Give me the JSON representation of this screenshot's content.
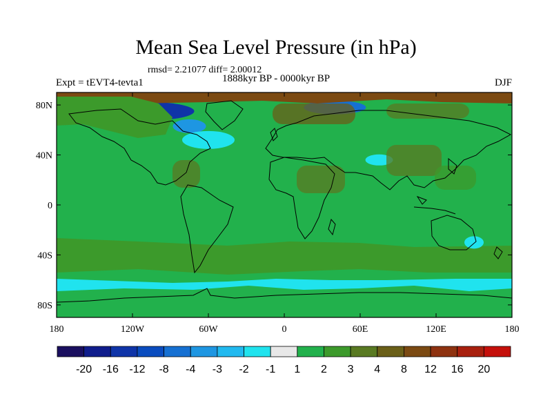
{
  "title": "Mean Sea Level Pressure (in hPa)",
  "stats": "rmsd= 2.21077 diff= 2.00012",
  "period": "1888kyr BP - 0000kyr BP",
  "experiment": "Expt = tEVT4-tevta1",
  "season": "DJF",
  "map": {
    "projection": "cylindrical-equidistant",
    "lon_range": [
      -180,
      180
    ],
    "lat_range": [
      -90,
      90
    ],
    "background_fill": "2",
    "lat_ticks": [
      "80N",
      "40N",
      "0",
      "40S",
      "80S"
    ],
    "lon_ticks": [
      "180",
      "120W",
      "60W",
      "0",
      "60E",
      "120E",
      "180"
    ],
    "regions": [
      {
        "name": "arctic-canada-low",
        "level": "-12",
        "lon": -105,
        "lat": 75
      },
      {
        "name": "hudson-low",
        "level": "-3",
        "lon": -75,
        "lat": 63
      },
      {
        "name": "labrador-neutral",
        "level": "-1",
        "lon": -60,
        "lat": 52
      },
      {
        "name": "siberia-low",
        "level": "-4",
        "lon": 40,
        "lat": 78
      },
      {
        "name": "arctic-ocean-high",
        "level": "12",
        "lon": -20,
        "lat": 85
      },
      {
        "name": "north-pacific-band",
        "level": "3",
        "lon": -150,
        "lat": 65
      },
      {
        "name": "southern-ocean-band",
        "level": "3",
        "lon": 0,
        "lat": -42
      },
      {
        "name": "antarctic-neutral",
        "level": "-1",
        "lon": 0,
        "lat": -68
      },
      {
        "name": "indian-ocean-neutral",
        "level": "-1",
        "lon": 75,
        "lat": 36
      },
      {
        "name": "australia-neutral",
        "level": "-1",
        "lon": 150,
        "lat": -30
      }
    ]
  },
  "colorbar": {
    "colors": [
      "#1a0f5f",
      "#101d8c",
      "#0f34a8",
      "#0a4cbf",
      "#1670d2",
      "#1e96e2",
      "#21b9ef",
      "#20e3ee",
      "#e8e8e8",
      "#22b14c",
      "#3c9a2b",
      "#597a22",
      "#6a5f18",
      "#7b4a12",
      "#8e3210",
      "#a8200e",
      "#c5100b"
    ],
    "labels": [
      "-20",
      "-16",
      "-12",
      "-8",
      "-4",
      "-3",
      "-2",
      "-1",
      "1",
      "2",
      "3",
      "4",
      "8",
      "12",
      "16",
      "20"
    ]
  }
}
